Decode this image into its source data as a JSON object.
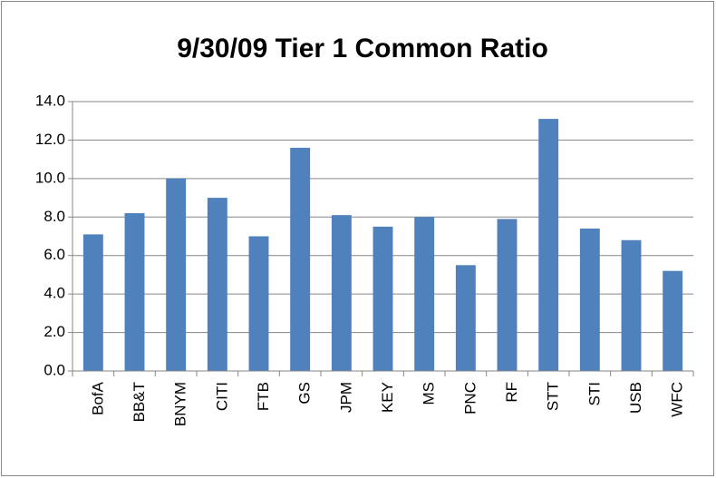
{
  "chart_data": {
    "type": "bar",
    "title": "9/30/09 Tier 1 Common Ratio",
    "categories": [
      "BofA",
      "BB&T",
      "BNYM",
      "CITI",
      "FTB",
      "GS",
      "JPM",
      "KEY",
      "MS",
      "PNC",
      "RF",
      "STT",
      "STI",
      "USB",
      "WFC"
    ],
    "values": [
      7.1,
      8.2,
      10.0,
      9.0,
      7.0,
      11.6,
      8.1,
      7.5,
      8.0,
      5.5,
      7.9,
      13.1,
      7.4,
      6.8,
      5.2
    ],
    "color": "#4f81bd",
    "ylim": [
      0,
      14
    ],
    "yticks": [
      {
        "value": 0,
        "label": "0.0"
      },
      {
        "value": 2,
        "label": "2.0"
      },
      {
        "value": 4,
        "label": "4.0"
      },
      {
        "value": 6,
        "label": "6.0"
      },
      {
        "value": 8,
        "label": "8.0"
      },
      {
        "value": 10,
        "label": "10.0"
      },
      {
        "value": 12,
        "label": "12.0"
      },
      {
        "value": 14,
        "label": "14.0"
      }
    ],
    "grid": true
  }
}
